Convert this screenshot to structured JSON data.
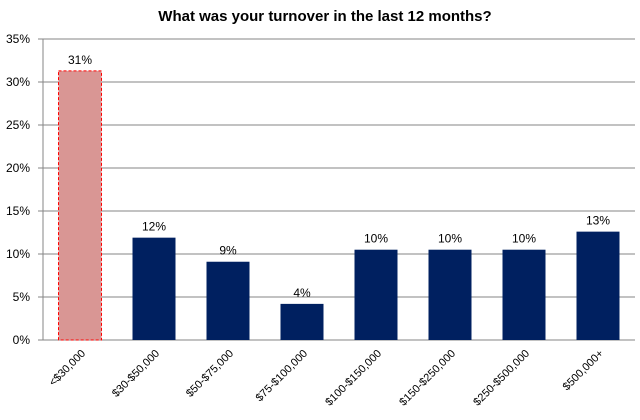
{
  "chart_data": {
    "type": "bar",
    "title": "What was your turnover in the last 12 months?",
    "xlabel": "",
    "ylabel": "",
    "categories": [
      "<$30,000",
      "$30-$50,000",
      "$50-$75,000",
      "$75-$100,000",
      "$100-$150,000",
      "$150-$250,000",
      "$250-$500,000",
      "$500,000+"
    ],
    "values": [
      31.3,
      11.9,
      9.1,
      4.2,
      10.5,
      10.5,
      10.5,
      12.6
    ],
    "data_labels": [
      "31%",
      "12%",
      "9%",
      "4%",
      "10%",
      "10%",
      "10%",
      "13%"
    ],
    "ylim": [
      0,
      35
    ],
    "yticks": [
      0,
      5,
      10,
      15,
      20,
      25,
      30,
      35
    ],
    "ytick_labels": [
      "0%",
      "5%",
      "10%",
      "15%",
      "20%",
      "25%",
      "30%",
      "35%"
    ],
    "grid": true,
    "legend": "none",
    "colors": {
      "bar": "#002060",
      "highlight_bar": "#D99694",
      "highlight_border": "#FF0000",
      "grid": "#868686"
    },
    "highlighted_index": 0
  }
}
